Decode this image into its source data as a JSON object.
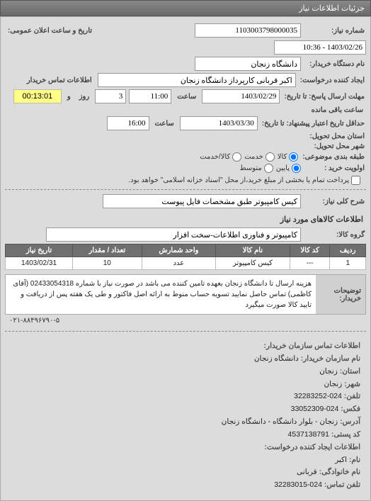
{
  "panel_title": "جزئیات اطلاعات نیاز",
  "labels": {
    "req_no": "شماره نیاز:",
    "announce": "تاریخ و ساعت اعلان عمومی:",
    "org": "نام دستگاه خریدار:",
    "creator": "ایجاد کننده درخواست:",
    "buyer_contact": "اطلاعات تماس خریدار",
    "deadline": "مهلت ارسال پاسخ: تا تاریخ:",
    "time": "ساعت",
    "and": "و",
    "day": "روز",
    "remain": "ساعت باقی مانده",
    "valid_due": "حداقل تاریخ اعتبار پیشنهاد: تا تاریخ:",
    "province": "استان محل تحویل:",
    "city": "شهر محل تحویل:",
    "category": "طبقه بندی موضوعی:",
    "goods": "کالا",
    "service": "خدمت",
    "goods_service": "کالا/خدمت",
    "priority": "اولویت خرید :",
    "low": "پایین",
    "mid": "متوسط",
    "note": "پرداخت تمام یا بخشی از مبلغ خرید،از محل \"اسناد خزانه اسلامی\" خواهد بود.",
    "short_desc": "شرح کلی نیاز:",
    "items_title": "اطلاعات کالاهای مورد نیاز",
    "group": "گروه کالا:",
    "explain": "توضیحات خریدار:"
  },
  "values": {
    "req_no": "1103003798000035",
    "announce": "1403/02/26 - 10:36",
    "org": "دانشگاه زنجان",
    "creator": "اکبر قربانی کارپرداز دانشگاه زنجان",
    "deadline_date": "1403/02/29",
    "deadline_time": "11:00",
    "deadline_days": "3",
    "deadline_remain": "00:13:01",
    "valid_date": "1403/03/30",
    "valid_time": "16:00",
    "short_desc": "کیس کامپیوتر طبق مشخصات فایل پیوست",
    "group": "کامپیوتر و فناوری اطلاعات-سخت افزار"
  },
  "table": {
    "headers": {
      "row": "ردیف",
      "code": "کد کالا",
      "name": "نام کالا",
      "unit": "واحد شمارش",
      "qty": "تعداد / مقدار",
      "date": "تاریخ نیاز"
    },
    "rows": [
      {
        "row": "1",
        "code": "---",
        "name": "کیس کامپیوتر",
        "unit": "عدد",
        "qty": "10",
        "date": "1403/02/31"
      }
    ]
  },
  "description": "هزینه ارسال تا دانشگاه زنجان بعهده تامین کننده می باشد در صورت نیاز با شماره 02433054318 (آقای کاظمی) تماس حاصل نمایید تسویه حساب منوط به ارائه اصل فاکتور و طی یک هفته پس از دریافت و تایید کالا صورت میگیرد",
  "attach_phone": "۰۲۱-۸۸۴۹۶۷۹۰-۵",
  "contact": {
    "title": "اطلاعات تماس سازمان خریدار:",
    "org_lbl": "نام سازمان خریدار:",
    "org": "دانشگاه زنجان",
    "prov_lbl": "استان:",
    "prov": "زنجان",
    "city_lbl": "شهر:",
    "city": "زنجان",
    "tel_lbl": "تلفن:",
    "tel": "024-32283252",
    "fax_lbl": "فکس:",
    "fax": "024-33052309",
    "addr_lbl": "آدرس:",
    "addr": "زنجان - بلوار دانشگاه - دانشگاه زنجان",
    "post_lbl": "کد پستی:",
    "post": "4537138791",
    "creator_title": "اطلاعات ایجاد کننده درخواست:",
    "name_lbl": "نام:",
    "name": "اکبر",
    "lname_lbl": "نام خانوادگی:",
    "lname": "قربانی",
    "ctel_lbl": "تلفن تماس:",
    "ctel": "024-32283015"
  }
}
